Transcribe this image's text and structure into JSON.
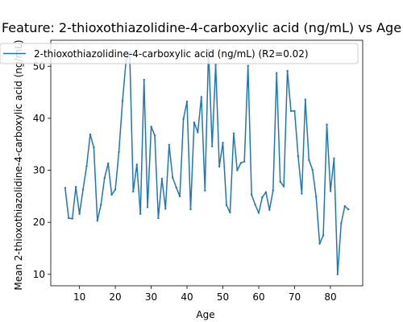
{
  "colors": {
    "series": "#1f77b4",
    "axis": "#000000",
    "legend_border": "#cccccc"
  },
  "chart_data": {
    "type": "line",
    "title": "Feature: 2-thioxothiazolidine-4-carboxylic acid (ng/mL) vs Age",
    "xlabel": "Age",
    "ylabel": "Mean 2-thioxothiazolidine-4-carboxylic acid (ng/mL)",
    "xlim": [
      2,
      89
    ],
    "ylim": [
      7.8,
      55
    ],
    "xticks": [
      10,
      20,
      30,
      40,
      50,
      60,
      70,
      80
    ],
    "yticks": [
      10,
      20,
      30,
      40,
      50
    ],
    "legend_position": "top-left",
    "grid": false,
    "series": [
      {
        "name": "2-thioxothiazolidine-4-carboxylic acid (ng/mL) (R2=0.02)",
        "x": [
          6,
          7,
          8,
          9,
          10,
          11,
          12,
          13,
          14,
          15,
          16,
          17,
          18,
          19,
          20,
          21,
          22,
          23,
          24,
          25,
          26,
          27,
          28,
          29,
          30,
          31,
          32,
          33,
          34,
          35,
          36,
          37,
          38,
          39,
          40,
          41,
          42,
          43,
          44,
          45,
          46,
          47,
          48,
          49,
          50,
          51,
          52,
          53,
          54,
          55,
          56,
          57,
          58,
          59,
          60,
          61,
          62,
          63,
          64,
          65,
          66,
          67,
          68,
          69,
          70,
          71,
          72,
          73,
          74,
          75,
          76,
          77,
          78,
          79,
          80,
          81,
          82,
          83,
          84,
          85
        ],
        "y": [
          26.6,
          20.8,
          20.7,
          26.8,
          21.6,
          26.3,
          30.8,
          36.9,
          34.4,
          20.3,
          23.4,
          28.5,
          31.3,
          25.3,
          26.3,
          33.5,
          43.3,
          51.1,
          52.7,
          25.9,
          31.1,
          21.6,
          47.4,
          22.9,
          38.4,
          36.7,
          20.8,
          28.4,
          22.6,
          34.9,
          28.6,
          26.7,
          25.0,
          39.9,
          43.2,
          22.5,
          39.2,
          37.3,
          44.1,
          26.1,
          53.2,
          34.6,
          50.3,
          30.7,
          35.3,
          23.3,
          21.9,
          37.1,
          30.0,
          31.4,
          31.7,
          50.1,
          25.3,
          23.4,
          21.8,
          24.8,
          25.8,
          22.4,
          26.1,
          48.7,
          27.8,
          26.9,
          49.1,
          41.4,
          41.4,
          32.7,
          25.5,
          43.6,
          32.0,
          30.1,
          24.9,
          15.9,
          17.5,
          38.8,
          26.0,
          32.3,
          10.0,
          19.8,
          23.1,
          22.5
        ]
      }
    ]
  }
}
